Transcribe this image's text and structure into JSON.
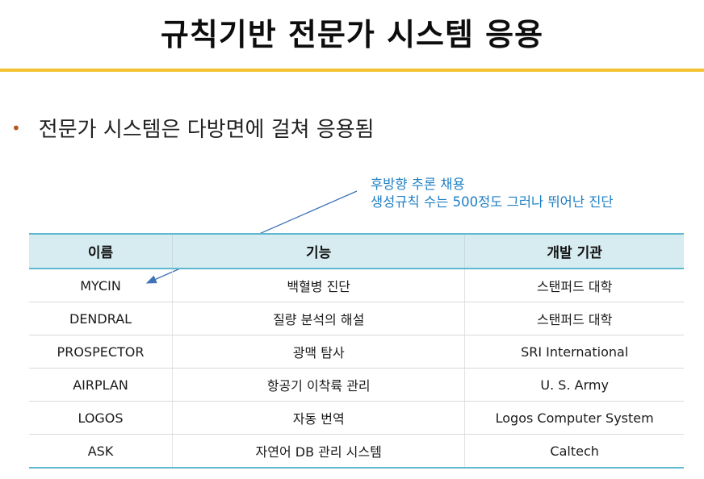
{
  "slide": {
    "title": "규칙기반 전문가 시스템 응용",
    "bullet": "전문가 시스템은 다방면에 걸쳐 응용됨",
    "annotation": {
      "line1": "후방향 추론 채용",
      "line2": "생성규칙 수는 500정도 그러나 뛰어난 진단"
    },
    "colors": {
      "accent_rule": "#f2c230",
      "annotation": "#1f7fc4",
      "table_header": "#d7ecf1",
      "table_border": "#5fb8cf"
    }
  },
  "table": {
    "headers": [
      "이름",
      "기능",
      "개발 기관"
    ],
    "rows": [
      [
        "MYCIN",
        "백혈병 진단",
        "스탠퍼드 대학"
      ],
      [
        "DENDRAL",
        "질량 분석의 해설",
        "스탠퍼드 대학"
      ],
      [
        "PROSPECTOR",
        "광맥 탐사",
        "SRI International"
      ],
      [
        "AIRPLAN",
        "항공기 이착륙 관리",
        "U. S. Army"
      ],
      [
        "LOGOS",
        "자동 번역",
        "Logos Computer System"
      ],
      [
        "ASK",
        "자연어 DB 관리 시스템",
        "Caltech"
      ]
    ]
  }
}
